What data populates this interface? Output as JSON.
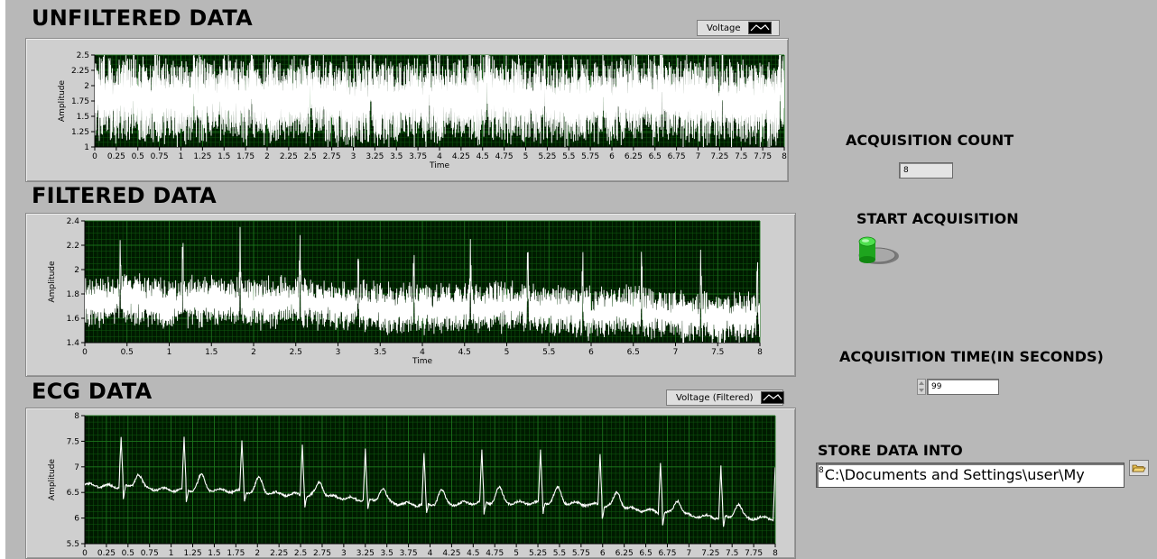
{
  "graphs": [
    {
      "id": "unfiltered",
      "title": "UNFILTERED DATA",
      "legend": "Voltage",
      "chart_data": {
        "type": "line",
        "xlabel": "Time",
        "ylabel": "Amplitude",
        "xlim": [
          0,
          8
        ],
        "ylim": [
          1,
          2.5
        ],
        "xticks": [
          "0",
          "0.25",
          "0.5",
          "0.75",
          "1",
          "1.25",
          "1.5",
          "1.75",
          "2",
          "2.25",
          "2.5",
          "2.75",
          "3",
          "3.25",
          "3.5",
          "3.75",
          "4",
          "4.25",
          "4.5",
          "4.75",
          "5",
          "5.25",
          "5.5",
          "5.75",
          "6",
          "6.25",
          "6.5",
          "6.75",
          "7",
          "7.25",
          "7.5",
          "7.75",
          "8"
        ],
        "yticks": [
          "1",
          "1.25",
          "1.5",
          "1.75",
          "2",
          "2.25",
          "2.5"
        ],
        "grid": true,
        "series": [
          {
            "color": "#ffffff",
            "x": [
              0,
              0.5,
              1,
              1.5,
              2,
              2.5,
              3,
              3.5,
              4,
              4.5,
              5,
              5.5,
              6,
              6.5,
              7,
              7.5,
              8
            ],
            "y": [
              1.8,
              1.78,
              1.76,
              1.82,
              1.75,
              1.8,
              1.72,
              1.74,
              1.76,
              1.78,
              1.74,
              1.72,
              1.76,
              1.78,
              1.74,
              1.7,
              1.72
            ]
          }
        ]
      }
    },
    {
      "id": "filtered",
      "title": "FILTERED DATA",
      "legend": "",
      "chart_data": {
        "type": "line",
        "xlabel": "Time",
        "ylabel": "Amplitude",
        "xlim": [
          0,
          8
        ],
        "ylim": [
          1.4,
          2.4
        ],
        "xticks": [
          "0",
          "0.5",
          "1",
          "1.5",
          "2",
          "2.5",
          "3",
          "3.5",
          "4",
          "4.5",
          "5",
          "5.5",
          "6",
          "6.5",
          "7",
          "7.5",
          "8"
        ],
        "yticks": [
          "1.4",
          "1.6",
          "1.8",
          "2",
          "2.2",
          "2.4"
        ],
        "grid": true,
        "series": [
          {
            "color": "#ffffff",
            "x": [
              0,
              0.5,
              1,
              1.5,
              2,
              2.5,
              3,
              3.5,
              4,
              4.5,
              5,
              5.5,
              6,
              6.5,
              7,
              7.5,
              8
            ],
            "y": [
              1.74,
              1.76,
              1.72,
              1.74,
              1.72,
              1.74,
              1.7,
              1.68,
              1.67,
              1.68,
              1.7,
              1.66,
              1.64,
              1.66,
              1.62,
              1.6,
              1.6
            ]
          }
        ]
      }
    },
    {
      "id": "ecg",
      "title": "ECG DATA",
      "legend": "Voltage (Filtered)",
      "chart_data": {
        "type": "line",
        "xlabel": "Time",
        "ylabel": "Amplitude",
        "xlim": [
          0,
          8
        ],
        "ylim": [
          5.5,
          8
        ],
        "xticks": [
          "0",
          "0.25",
          "0.5",
          "0.75",
          "1",
          "1.25",
          "1.5",
          "1.75",
          "2",
          "2.25",
          "2.5",
          "2.75",
          "3",
          "3.25",
          "3.5",
          "3.75",
          "4",
          "4.25",
          "4.5",
          "4.75",
          "5",
          "5.25",
          "5.5",
          "5.75",
          "6",
          "6.25",
          "6.5",
          "6.75",
          "7",
          "7.25",
          "7.5",
          "7.75",
          "8"
        ],
        "yticks": [
          "5.5",
          "6",
          "6.5",
          "7",
          "7.5",
          "8"
        ],
        "grid": true,
        "series": [
          {
            "color": "#ffffff",
            "x": [
              0,
              0.5,
              1,
              1.5,
              2,
              2.5,
              3,
              3.5,
              4,
              4.5,
              5,
              5.5,
              6,
              6.5,
              7,
              7.5,
              8
            ],
            "y": [
              6.65,
              6.6,
              6.55,
              6.55,
              6.5,
              6.45,
              6.4,
              6.3,
              6.25,
              6.3,
              6.3,
              6.3,
              6.25,
              6.15,
              6.05,
              6.0,
              6.0
            ]
          }
        ]
      }
    }
  ],
  "controls": {
    "acq_count_label": "ACQUISITION COUNT",
    "acq_count_value": "8",
    "start_label": "START ACQUISITION",
    "acq_time_label": "ACQUISITION TIME(IN SECONDS)",
    "acq_time_value": "99",
    "store_label": "STORE DATA INTO",
    "store_prefix": "8",
    "store_path": "C:\\Documents and Settings\\user\\My"
  },
  "icons": {
    "legend_swatch": "line-plot-swatch-icon",
    "start_button": "green-push-button-icon",
    "stepper": "up-down-stepper-icon",
    "browse": "folder-browse-icon"
  },
  "colors": {
    "plot_bg": "#001a00",
    "grid_minor": "#0f5a0f",
    "grid_major": "#1e7a1e",
    "trace": "#ffffff",
    "button_green": "#22c022"
  }
}
